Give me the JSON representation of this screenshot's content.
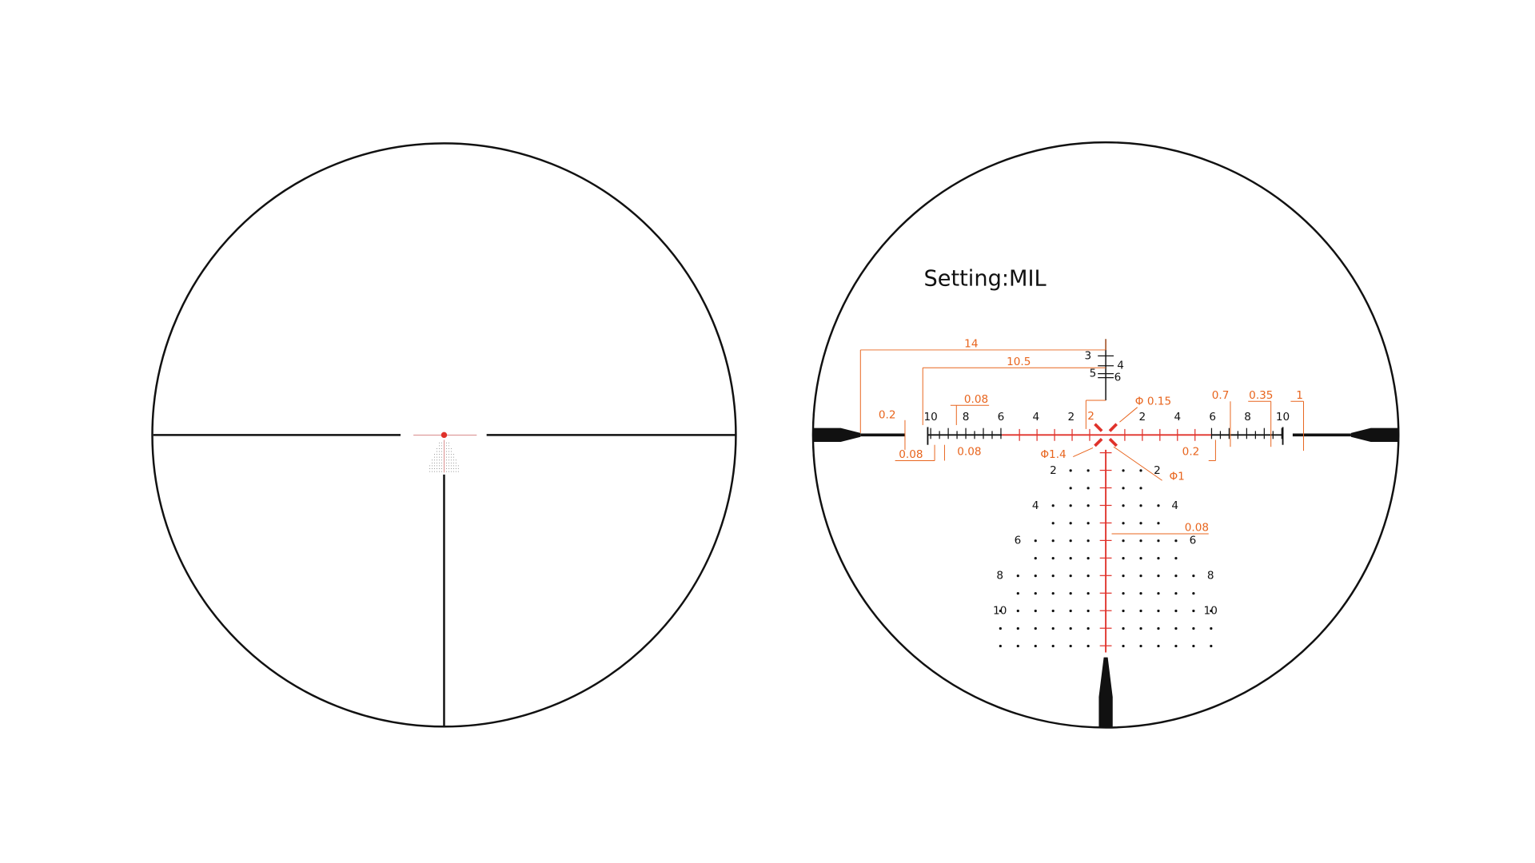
{
  "title": "Setting:MIL",
  "windage_scale": {
    "left": [
      "10",
      "8",
      "6",
      "4",
      "2"
    ],
    "right": [
      "2",
      "4",
      "6",
      "8",
      "10"
    ]
  },
  "elevation_scale": [
    "3",
    "4",
    "5",
    "6"
  ],
  "holdover_labels": {
    "left": [
      "2",
      "4",
      "6",
      "8",
      "10"
    ],
    "right": [
      "2",
      "4",
      "6",
      "8",
      "10"
    ]
  },
  "dimensions": [
    "14",
    "10.5",
    "0.2",
    "0.08",
    "0.08",
    "0.08",
    "2",
    "Φ 0.15",
    "Φ1.4",
    "Φ1",
    "0.7",
    "0.35",
    "1",
    "0.2",
    "0.08"
  ]
}
